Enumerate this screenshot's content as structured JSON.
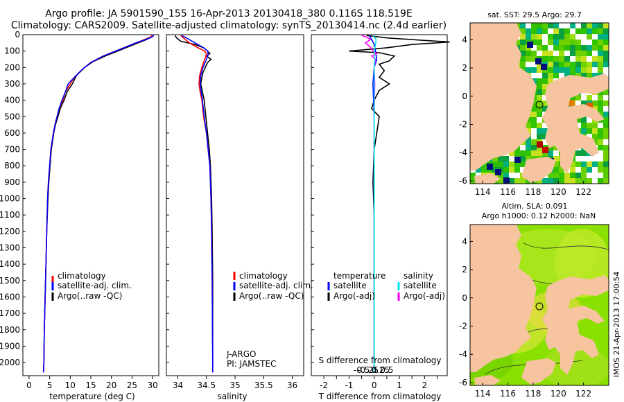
{
  "title": {
    "line1": "Argo profile: JA 5901590_155 16-Apr-2013 20130418_380 0.116S 118.519E",
    "line2": "Climatology: CARS2009. Satellite-adjusted climatology: synTS_20130414.nc (2.4d earlier)"
  },
  "colors": {
    "climatology": "#ff0000",
    "satellite": "#0000ff",
    "argo": "#000000",
    "sat_salinity": "#00e5ee",
    "argo_salinity": "#ff00ff",
    "land": "#f6c49e",
    "ocean_sla": "#8ae000"
  },
  "chart_data": [
    {
      "type": "line",
      "id": "temperature",
      "xlabel": "temperature (deg C)",
      "xlim": [
        -1.5,
        31.5
      ],
      "xticks": [
        0,
        5,
        10,
        15,
        20,
        25,
        30
      ],
      "ylim": [
        2080,
        0
      ],
      "yticks": [
        0,
        100,
        200,
        300,
        400,
        500,
        600,
        700,
        800,
        900,
        1000,
        1100,
        1200,
        1300,
        1400,
        1500,
        1600,
        1700,
        1800,
        1900,
        2000
      ],
      "legend": [
        "climatology",
        "satellite-adj. clim.",
        "Argo(..raw -QC)"
      ],
      "series": [
        {
          "name": "climatology",
          "points": [
            [
              29.8,
              5
            ],
            [
              29.5,
              15
            ],
            [
              28.0,
              30
            ],
            [
              26.0,
              50
            ],
            [
              23.5,
              75
            ],
            [
              21.0,
              100
            ],
            [
              18.0,
              130
            ],
            [
              15.0,
              170
            ],
            [
              13.0,
              210
            ],
            [
              11.0,
              260
            ],
            [
              10.0,
              300
            ],
            [
              8.8,
              350
            ],
            [
              8.2,
              400
            ],
            [
              7.3,
              450
            ],
            [
              6.8,
              500
            ],
            [
              6.3,
              550
            ],
            [
              5.9,
              600
            ],
            [
              5.6,
              650
            ],
            [
              5.3,
              700
            ],
            [
              5.0,
              800
            ],
            [
              4.7,
              900
            ],
            [
              4.5,
              1000
            ],
            [
              4.3,
              1200
            ],
            [
              4.1,
              1400
            ],
            [
              3.9,
              1600
            ],
            [
              3.7,
              1800
            ],
            [
              3.6,
              2000
            ],
            [
              3.5,
              2060
            ]
          ]
        },
        {
          "name": "satellite-adj. clim.",
          "points": [
            [
              30.3,
              5
            ],
            [
              29.8,
              15
            ],
            [
              28.3,
              30
            ],
            [
              26.0,
              50
            ],
            [
              23.5,
              75
            ],
            [
              21.0,
              100
            ],
            [
              18.0,
              130
            ],
            [
              15.0,
              170
            ],
            [
              13.0,
              210
            ],
            [
              11.0,
              260
            ],
            [
              9.5,
              300
            ],
            [
              8.8,
              350
            ],
            [
              8.0,
              400
            ],
            [
              7.3,
              450
            ],
            [
              6.8,
              500
            ],
            [
              6.3,
              550
            ],
            [
              5.9,
              600
            ],
            [
              5.6,
              650
            ],
            [
              5.3,
              700
            ],
            [
              5.0,
              800
            ],
            [
              4.7,
              900
            ],
            [
              4.5,
              1000
            ],
            [
              4.3,
              1200
            ],
            [
              4.1,
              1400
            ],
            [
              3.9,
              1600
            ],
            [
              3.7,
              1800
            ],
            [
              3.6,
              2000
            ],
            [
              3.5,
              2060
            ]
          ]
        },
        {
          "name": "Argo(..raw -QC)",
          "points": [
            [
              30.0,
              5
            ],
            [
              29.7,
              15
            ],
            [
              28.5,
              30
            ],
            [
              26.5,
              50
            ],
            [
              24.0,
              75
            ],
            [
              21.5,
              100
            ],
            [
              18.5,
              130
            ],
            [
              15.5,
              165
            ],
            [
              13.5,
              200
            ],
            [
              11.5,
              250
            ],
            [
              10.5,
              300
            ],
            [
              9.2,
              350
            ],
            [
              8.5,
              400
            ],
            [
              7.6,
              450
            ],
            [
              7.0,
              500
            ],
            [
              6.4,
              550
            ],
            [
              6.0,
              600
            ],
            [
              5.7,
              650
            ],
            [
              5.4,
              700
            ],
            [
              5.1,
              800
            ],
            [
              4.8,
              900
            ],
            [
              4.6,
              1000
            ],
            [
              4.3,
              1200
            ],
            [
              4.1,
              1400
            ],
            [
              3.9,
              1600
            ],
            [
              3.7,
              1800
            ],
            [
              3.6,
              2000
            ],
            [
              3.5,
              2060
            ]
          ]
        }
      ]
    },
    {
      "type": "line",
      "id": "salinity",
      "xlabel": "salinity",
      "xlim": [
        33.8,
        36.2
      ],
      "xticks": [
        34,
        34.5,
        35,
        35.5,
        36
      ],
      "ylim": [
        2080,
        0
      ],
      "legend": [
        "climatology",
        "satellite-adj. clim.",
        "Argo(..raw -QC)"
      ],
      "annotations": [
        "J-ARGO",
        "PI: JAMSTEC"
      ],
      "series": [
        {
          "name": "climatology",
          "points": [
            [
              34.05,
              5
            ],
            [
              34.1,
              20
            ],
            [
              34.2,
              50
            ],
            [
              34.35,
              80
            ],
            [
              34.47,
              100
            ],
            [
              34.5,
              120
            ],
            [
              34.47,
              150
            ],
            [
              34.42,
              200
            ],
            [
              34.38,
              250
            ],
            [
              34.37,
              300
            ],
            [
              34.39,
              350
            ],
            [
              34.42,
              400
            ],
            [
              34.45,
              500
            ],
            [
              34.5,
              600
            ],
            [
              34.53,
              700
            ],
            [
              34.56,
              800
            ],
            [
              34.58,
              1000
            ],
            [
              34.59,
              1200
            ],
            [
              34.6,
              1500
            ],
            [
              34.61,
              2000
            ],
            [
              34.61,
              2060
            ]
          ]
        },
        {
          "name": "satellite-adj. clim.",
          "points": [
            [
              34.07,
              5
            ],
            [
              34.15,
              20
            ],
            [
              34.3,
              50
            ],
            [
              34.45,
              80
            ],
            [
              34.52,
              100
            ],
            [
              34.53,
              120
            ],
            [
              34.5,
              150
            ],
            [
              34.44,
              200
            ],
            [
              34.4,
              250
            ],
            [
              34.39,
              300
            ],
            [
              34.41,
              350
            ],
            [
              34.43,
              400
            ],
            [
              34.46,
              500
            ],
            [
              34.5,
              600
            ],
            [
              34.53,
              700
            ],
            [
              34.56,
              800
            ],
            [
              34.58,
              1000
            ],
            [
              34.59,
              1200
            ],
            [
              34.6,
              1500
            ],
            [
              34.61,
              2000
            ],
            [
              34.61,
              2060
            ]
          ]
        },
        {
          "name": "Argo(..raw -QC)",
          "points": [
            [
              33.95,
              5
            ],
            [
              33.98,
              20
            ],
            [
              34.05,
              40
            ],
            [
              34.3,
              60
            ],
            [
              34.45,
              80
            ],
            [
              34.52,
              100
            ],
            [
              34.56,
              115
            ],
            [
              34.5,
              130
            ],
            [
              34.58,
              150
            ],
            [
              34.52,
              170
            ],
            [
              34.48,
              200
            ],
            [
              34.44,
              230
            ],
            [
              34.42,
              260
            ],
            [
              34.4,
              300
            ],
            [
              34.43,
              350
            ],
            [
              34.46,
              400
            ],
            [
              34.49,
              500
            ],
            [
              34.52,
              600
            ],
            [
              34.55,
              700
            ],
            [
              34.57,
              800
            ],
            [
              34.59,
              1000
            ],
            [
              34.6,
              1200
            ],
            [
              34.61,
              1500
            ],
            [
              34.61,
              2000
            ]
          ]
        }
      ]
    },
    {
      "type": "line",
      "id": "difference",
      "xlabel_top": "S difference from climatology",
      "xlabel": "T difference from climatology",
      "xlim": [
        -2.5,
        2.9
      ],
      "xticks": [
        -2,
        -1.5,
        -1,
        -0.5,
        0,
        0.5,
        1,
        1.5,
        2,
        2.5
      ],
      "xticklabels": [
        "-2",
        "",
        "-1",
        "",
        "0",
        "",
        "1",
        "",
        "2",
        ""
      ],
      "sticks": [
        -0.5,
        -0.25,
        0,
        0.25,
        0.5
      ],
      "sticklabels": [
        "-0.5",
        "-0.25",
        "0",
        "0.25",
        "0.5"
      ],
      "ylim": [
        2080,
        0
      ],
      "legend_temperature": {
        "header": "temperature",
        "items": [
          "satellite",
          "Argo(-adj)"
        ]
      },
      "legend_salinity": {
        "header": "salinity",
        "items": [
          "satellite",
          "Argo(-adj)"
        ]
      },
      "series": [
        {
          "name": "T satellite",
          "points": [
            [
              -0.2,
              5
            ],
            [
              -0.1,
              30
            ],
            [
              0.0,
              60
            ],
            [
              0.05,
              100
            ],
            [
              0.1,
              150
            ],
            [
              0.0,
              200
            ],
            [
              -0.05,
              300
            ],
            [
              0.0,
              500
            ],
            [
              0.0,
              1000
            ],
            [
              0.0,
              2000
            ],
            [
              0.0,
              2060
            ]
          ]
        },
        {
          "name": "T Argo(-adj)",
          "points": [
            [
              -0.3,
              5
            ],
            [
              0.5,
              20
            ],
            [
              2.0,
              35
            ],
            [
              3.0,
              45
            ],
            [
              1.5,
              60
            ],
            [
              0.5,
              80
            ],
            [
              -1.0,
              100
            ],
            [
              0.2,
              110
            ],
            [
              0.8,
              130
            ],
            [
              0.6,
              160
            ],
            [
              0.2,
              180
            ],
            [
              0.4,
              220
            ],
            [
              0.2,
              260
            ],
            [
              0.6,
              300
            ],
            [
              0.2,
              340
            ],
            [
              0.0,
              400
            ],
            [
              -0.1,
              450
            ],
            [
              0.2,
              500
            ],
            [
              0.1,
              600
            ],
            [
              0.0,
              700
            ],
            [
              -0.05,
              900
            ],
            [
              0.0,
              1100
            ],
            [
              0.0,
              1500
            ],
            [
              0.0,
              2000
            ],
            [
              0.0,
              2060
            ]
          ]
        },
        {
          "name": "S satellite",
          "points": [
            [
              -0.05,
              5
            ],
            [
              0.08,
              30
            ],
            [
              0.05,
              60
            ],
            [
              0.0,
              100
            ],
            [
              0.02,
              150
            ],
            [
              0.0,
              200
            ],
            [
              0.0,
              300
            ],
            [
              0.0,
              500
            ],
            [
              0.0,
              1000
            ],
            [
              0.0,
              2000
            ],
            [
              0.0,
              2060
            ]
          ]
        },
        {
          "name": "S Argo(-adj)",
          "points": [
            [
              -0.5,
              5
            ],
            [
              -0.3,
              15
            ],
            [
              -0.15,
              30
            ],
            [
              -0.35,
              50
            ],
            [
              -0.2,
              70
            ],
            [
              -0.1,
              85
            ],
            [
              -0.05,
              100
            ],
            [
              0.1,
              115
            ],
            [
              -0.1,
              130
            ],
            [
              0.05,
              150
            ],
            [
              0.0,
              200
            ],
            [
              0.02,
              300
            ],
            [
              0.0,
              500
            ],
            [
              0.0,
              1000
            ],
            [
              0.0,
              2000
            ]
          ]
        }
      ]
    },
    {
      "type": "heatmap",
      "id": "sst_map",
      "title": "sat. SST: 29.5 Argo: 29.7",
      "xticks": [
        114,
        116,
        118,
        120,
        122
      ],
      "yticks": [
        4,
        2,
        0,
        -2,
        -4,
        -6
      ],
      "xlim": [
        113,
        124
      ],
      "ylim": [
        -6.2,
        5.2
      ],
      "marker": {
        "lon": 118.519,
        "lat": -0.116
      }
    },
    {
      "type": "heatmap",
      "id": "sla_map",
      "title": "Altim. SLA: 0.091",
      "subtitle": "Argo h1000: 0.12 h2000: NaN",
      "xticks": [
        114,
        116,
        118,
        120,
        122
      ],
      "yticks": [
        4,
        2,
        0,
        -2,
        -4,
        -6
      ],
      "xlim": [
        113,
        124
      ],
      "ylim": [
        -6.2,
        5.2
      ],
      "marker": {
        "lon": 118.519,
        "lat": -0.116
      }
    }
  ],
  "side_label": "IMOS 21-Apr-2013 17:00:54"
}
